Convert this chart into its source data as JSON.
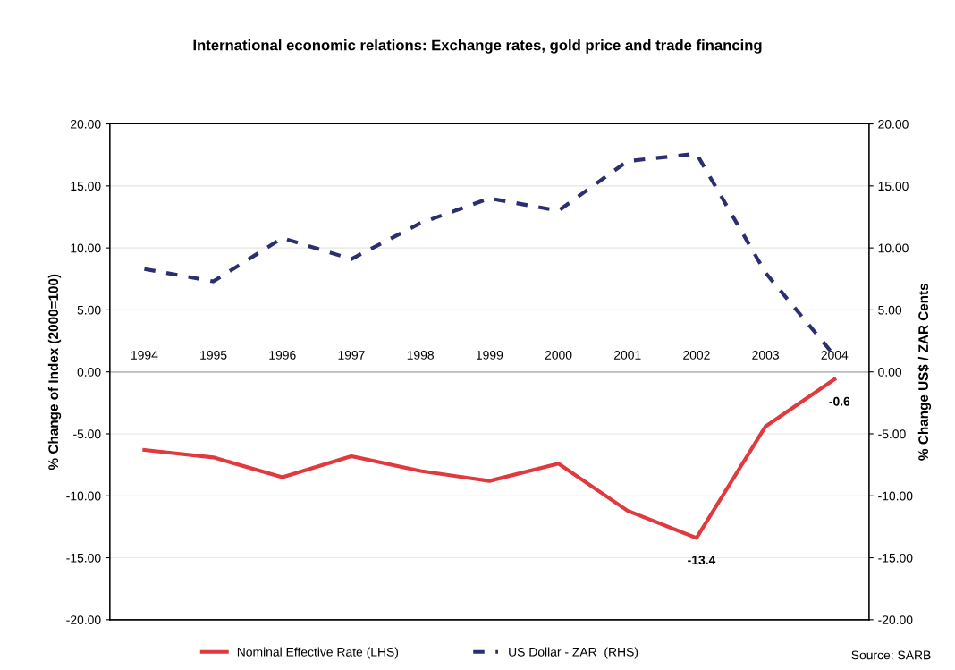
{
  "chart_data": {
    "type": "line",
    "title": "International economic relations: Exchange rates, gold price and trade financing",
    "categories": [
      "1994",
      "1995",
      "1996",
      "1997",
      "1998",
      "1999",
      "2000",
      "2001",
      "2002",
      "2003",
      "2004"
    ],
    "series": [
      {
        "name": "Nominal Effective Rate (LHS)",
        "color": "#e0393e",
        "line_style": "solid",
        "values": [
          -6.3,
          -6.9,
          -8.5,
          -6.8,
          -8.0,
          -8.8,
          -7.4,
          -11.2,
          -13.4,
          -4.4,
          -0.6
        ],
        "value_labels": [
          null,
          null,
          null,
          null,
          null,
          null,
          null,
          null,
          "-13.4",
          null,
          "-0.6"
        ]
      },
      {
        "name": "US Dollar - ZAR  (RHS)",
        "color": "#2b2f6e",
        "line_style": "dashed",
        "axis": "y2",
        "values": [
          8.3,
          7.3,
          10.8,
          9.1,
          12.0,
          14.0,
          13.0,
          17.0,
          17.6,
          8.0,
          1.3
        ]
      }
    ],
    "ylabel": "% Change of Index (2000=100)",
    "y2label": "% Change US$ / ZAR Cents",
    "ylim": [
      -20,
      20
    ],
    "yticks": [
      {
        "value": -20,
        "label": "-20.00"
      },
      {
        "value": -15,
        "label": "-15.00"
      },
      {
        "value": -10,
        "label": "-10.00"
      },
      {
        "value": -5,
        "label": "-5.00"
      },
      {
        "value": 0,
        "label": "0.00"
      },
      {
        "value": 5,
        "label": "5.00"
      },
      {
        "value": 10,
        "label": "10.00"
      },
      {
        "value": 15,
        "label": "15.00"
      },
      {
        "value": 20,
        "label": "20.00"
      }
    ],
    "y2lim": [
      -20,
      20
    ],
    "y2ticks": [
      {
        "value": -20,
        "label": "-20.00"
      },
      {
        "value": -15,
        "label": "-15.00"
      },
      {
        "value": -10,
        "label": "-10.00"
      },
      {
        "value": -5,
        "label": "-5.00"
      },
      {
        "value": 0,
        "label": "0.00"
      },
      {
        "value": 5,
        "label": "5.00"
      },
      {
        "value": 10,
        "label": "10.00"
      },
      {
        "value": 15,
        "label": "15.00"
      },
      {
        "value": 20,
        "label": "20.00"
      }
    ],
    "grid": "y",
    "legend": "bottom",
    "marker": "none",
    "annotations": [
      "Source: SARB"
    ]
  }
}
